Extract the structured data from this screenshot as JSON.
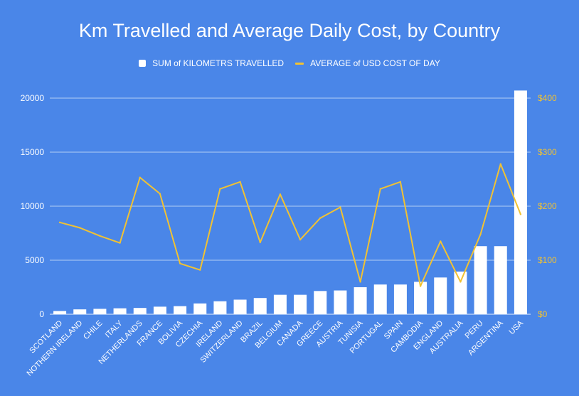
{
  "chart_data": {
    "type": "bar",
    "title": "Km Travelled and Average Daily Cost, by Country",
    "categories": [
      "SCOTLAND",
      "NOTHERN IRELAND",
      "CHILE",
      "ITALY",
      "NETHERLANDS",
      "FRANCE",
      "BOLIVIA",
      "CZECHIA",
      "IRELAND",
      "SWITZERLAND",
      "BRAZIL",
      "BELGIUM",
      "CANADA",
      "GREECE",
      "AUSTRIA",
      "TUNISIA",
      "PORTUGAL",
      "SPAIN",
      "CAMBODIA",
      "ENGLAND",
      "AUSTRALIA",
      "PERU",
      "ARGENTINA",
      "USA"
    ],
    "series": [
      {
        "name": "SUM of KILOMETRS TRAVELLED",
        "type": "bar",
        "axis": "left",
        "color": "#ffffff",
        "values": [
          300,
          450,
          500,
          550,
          580,
          700,
          750,
          1000,
          1200,
          1350,
          1500,
          1800,
          1800,
          2150,
          2200,
          2500,
          2750,
          2750,
          3000,
          3400,
          3950,
          6300,
          6300,
          20700
        ]
      },
      {
        "name": "AVERAGE of USD COST OF DAY",
        "type": "line",
        "axis": "right",
        "color": "#f1c232",
        "values": [
          170,
          160,
          145,
          132,
          253,
          223,
          94,
          82,
          232,
          245,
          133,
          222,
          138,
          178,
          198,
          60,
          232,
          245,
          52,
          135,
          60,
          148,
          278,
          185
        ]
      }
    ],
    "y_left": {
      "min": 0,
      "max": 20000,
      "ticks": [
        "0",
        "5000",
        "10000",
        "15000",
        "20000"
      ],
      "tick_values": [
        0,
        5000,
        10000,
        15000,
        20000
      ]
    },
    "y_right": {
      "min": 0,
      "max": 400,
      "ticks": [
        "$0",
        "$100",
        "$200",
        "$300",
        "$400"
      ],
      "tick_values": [
        0,
        100,
        200,
        300,
        400
      ]
    },
    "grid": true,
    "legend_position": "top",
    "background": "#4a86e8"
  }
}
